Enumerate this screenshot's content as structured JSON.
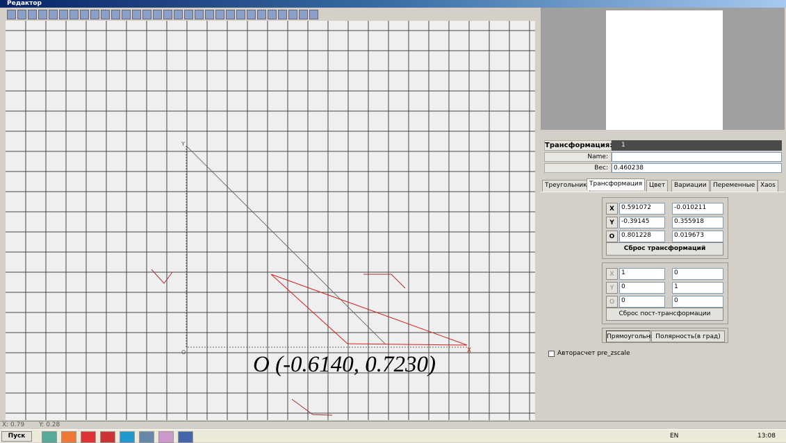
{
  "window": {
    "title": "Редактор"
  },
  "canvas": {
    "axis_labels": {
      "y": "Y",
      "o": "O",
      "x": "X"
    },
    "annotation": "O (-0.6140, 0.7230)"
  },
  "panel": {
    "transform_label": "Трансформация:",
    "transform_value": "1",
    "name_label": "Name:",
    "weight_label": "Вес:",
    "weight_value": "0.460238",
    "tabs": [
      "Треугольник",
      "Трансформация",
      "Цвет",
      "Вариации",
      "Переменные",
      "Xaos"
    ],
    "affine": {
      "rows": [
        {
          "label": "X",
          "values": [
            "0.591072",
            "-0.010211"
          ]
        },
        {
          "label": "Y",
          "values": [
            "-0.39145",
            "0.355918"
          ]
        },
        {
          "label": "O",
          "values": [
            "0.801228",
            "0.019673"
          ]
        }
      ],
      "reset": "Сброс трансформаций"
    },
    "post": {
      "rows": [
        {
          "label": "X",
          "values": [
            "1",
            "0"
          ]
        },
        {
          "label": "Y",
          "values": [
            "0",
            "1"
          ]
        },
        {
          "label": "O",
          "values": [
            "0",
            "0"
          ]
        }
      ],
      "reset": "Сброс пост-трансформации"
    },
    "modes": [
      "Прямоугольный",
      "Полярность(в град)"
    ],
    "checkbox": "Авторасчет pre_zscale"
  },
  "status": {
    "x": "X: 0.79",
    "y": "Y: 0.28"
  },
  "taskbar": {
    "start": "Пуск",
    "lang": "EN",
    "clock": "13:08"
  }
}
